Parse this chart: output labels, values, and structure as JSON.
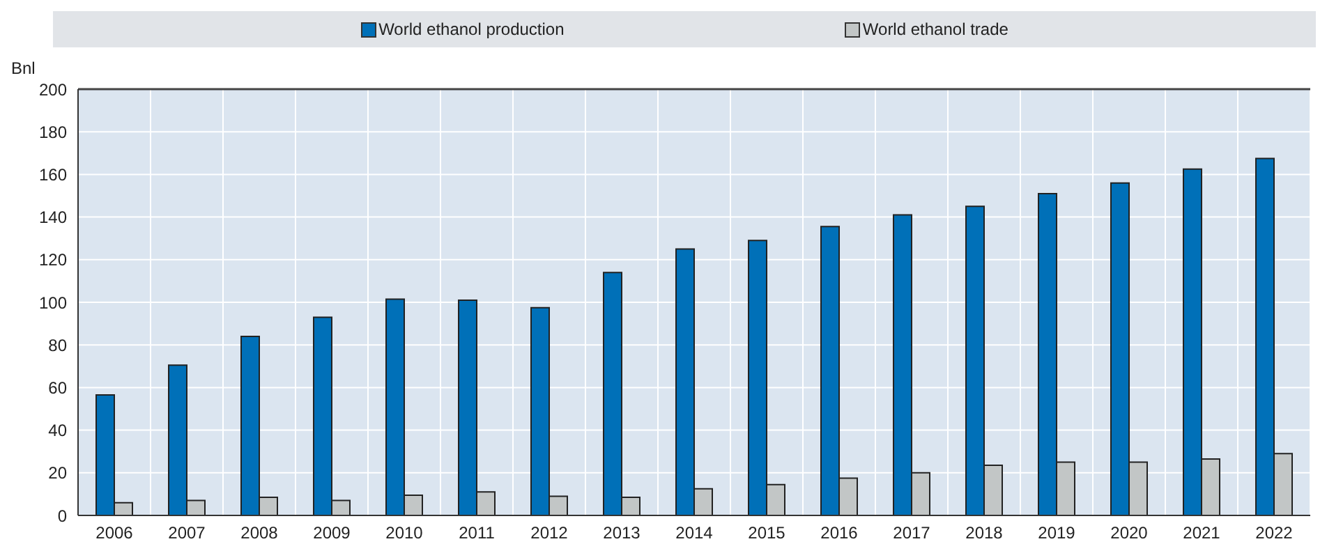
{
  "chart_data": {
    "type": "bar",
    "ylabel": "Bnl",
    "categories": [
      "2006",
      "2007",
      "2008",
      "2009",
      "2010",
      "2011",
      "2012",
      "2013",
      "2014",
      "2015",
      "2016",
      "2017",
      "2018",
      "2019",
      "2020",
      "2021",
      "2022"
    ],
    "series": [
      {
        "name": "World ethanol production",
        "color": "#0070b8",
        "values": [
          56.5,
          70.5,
          84,
          93,
          101.5,
          101,
          97.5,
          114,
          125,
          129,
          135.5,
          141,
          145,
          151,
          156,
          162.5,
          167.5
        ]
      },
      {
        "name": "World ethanol trade",
        "color": "#c2c6c6",
        "values": [
          6,
          7,
          8.5,
          7,
          9.5,
          11,
          9,
          8.5,
          12.5,
          14.5,
          17.5,
          20,
          23.5,
          25,
          25,
          26.5,
          29
        ]
      }
    ],
    "ylim": [
      0,
      200
    ],
    "yticks": [
      0,
      20,
      40,
      60,
      80,
      100,
      120,
      140,
      160,
      180,
      200
    ],
    "grid": true,
    "legend": "top"
  }
}
